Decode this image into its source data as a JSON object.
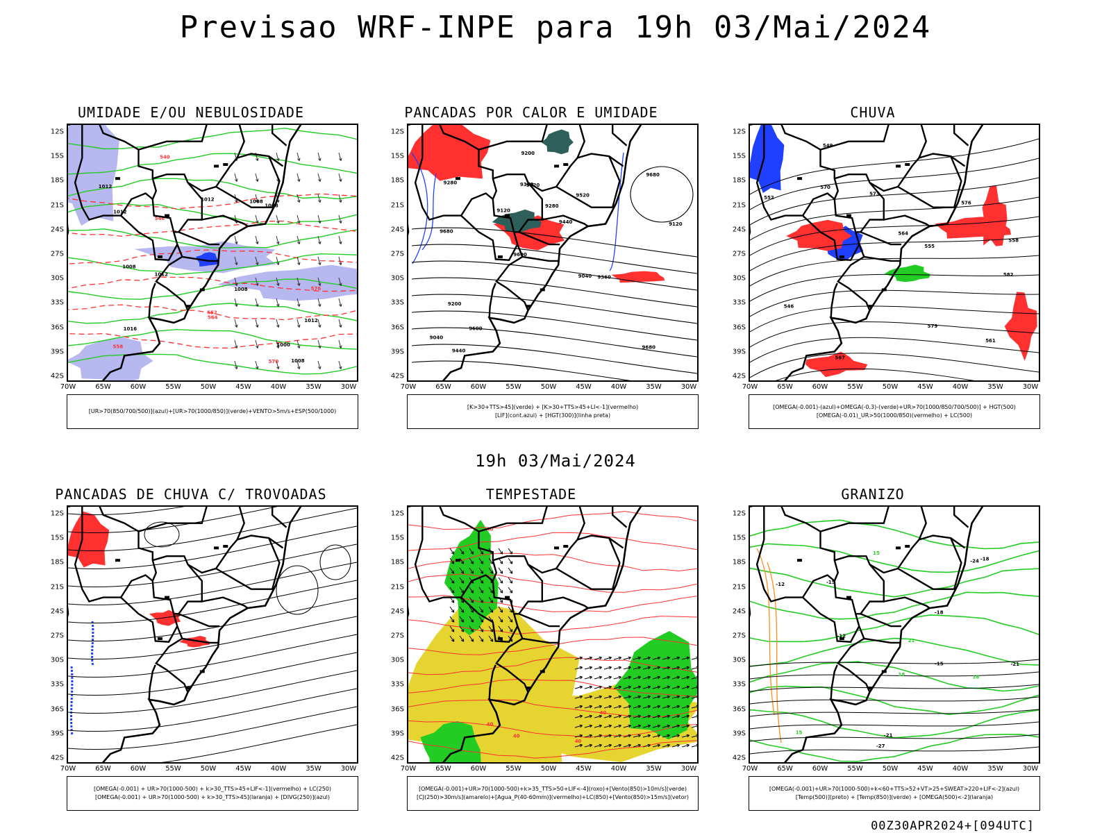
{
  "title": "Previsao WRF-INPE  para 19h 03/Mai/2024",
  "mid_title": "19h 03/Mai/2024",
  "footer": "00Z30APR2024+[094UTC]",
  "lat_labels": [
    "12S",
    "15S",
    "18S",
    "21S",
    "24S",
    "27S",
    "30S",
    "33S",
    "36S",
    "39S",
    "42S"
  ],
  "lon_labels": [
    "70W",
    "65W",
    "60W",
    "55W",
    "50W",
    "45W",
    "40W",
    "35W",
    "30W"
  ],
  "panels": [
    {
      "id": "umidade",
      "title": "UMIDADE E/OU NEBULOSIDADE",
      "legend": [
        "[UR>70(850/700/500)](azul)+[UR>70(1000/850)](verde)+VENTO>5m/s+ESP(500/1000)"
      ],
      "contour_labels": [
        "1008",
        "1008",
        "1008",
        "1012",
        "1012",
        "1012",
        "1016",
        "1012",
        "1008",
        "1012",
        "1008",
        "1000",
        "576",
        "570",
        "564",
        "558",
        "552",
        "546",
        "540"
      ]
    },
    {
      "id": "pancadas-calor",
      "title": "PANCADAS POR CALOR E UMIDADE",
      "legend": [
        "[K>30+TTS>45](verde) + [K>30+TTS>45+LI<-1](vermelho)",
        "[LIF](cont.azul) + [HGT(300)](linha preta)"
      ],
      "contour_labels": [
        "9680",
        "9680",
        "9680",
        "9600",
        "9520",
        "9440",
        "9360",
        "9280",
        "9200",
        "9120",
        "9040",
        "9600",
        "9520",
        "9440",
        "9360",
        "9280",
        "9200",
        "9120",
        "9040"
      ]
    },
    {
      "id": "chuva",
      "title": "CHUVA",
      "legend": [
        "[OMEGA(-0.001)-(azul)+OMEGA(-0.3)-(verde)+UR>70(1000/850/700/500)] + HGT(500)",
        "[OMEGA(-0.01)_UR>50(1000/850)(vermelho) + LC(500)"
      ],
      "contour_labels": [
        "582",
        "579",
        "576",
        "573",
        "570",
        "567",
        "564",
        "561",
        "558",
        "555",
        "552",
        "549",
        "546"
      ]
    },
    {
      "id": "pancadas-trovoadas",
      "title": "PANCADAS DE CHUVA C/ TROVOADAS",
      "legend": [
        "[OMEGA(-0.001) + UR>70(1000-500) + k>30_TTS>45+LIF<-1](vermelho) + LC(250)",
        "[OMEGA(-0.001) + UR>70(1000-500) + k>30_TTS>45](laranja) + [DIVG(250)](azul)"
      ],
      "contour_labels": []
    },
    {
      "id": "tempestade",
      "title": "TEMPESTADE",
      "legend": [
        "[OMEGA(-0.001)+UR>70(1000-500)+k>35_TTS>50+LIF<-4](roxo)+[Vento(850)>10m/s](verde)",
        "[CJ(250)>30m/s](amarelo)+[Agua_P(40-60mm)](vermelho)+LC(850)+[Vento(850)>15m/s](vetor)"
      ],
      "contour_labels": [
        "40",
        "40",
        "40",
        "40",
        "40"
      ]
    },
    {
      "id": "granizo",
      "title": "GRANIZO",
      "legend": [
        "[OMEGA(-0.001)+UR>70(1000-500)+k<60+TTS>52+VT>25+SWEAT>220+LIF<-2](azul)",
        "[Temp(500)](preto) + [Temp(850)](verde) + [OMEGA(500)<-2](laranja)"
      ],
      "contour_labels": [
        "-12",
        "-15",
        "-18",
        "-21",
        "-24",
        "-27",
        "-15",
        "-12",
        "-18",
        "-21",
        "15",
        "18",
        "21",
        "18",
        "15"
      ]
    }
  ],
  "colors": {
    "coast": "#000000",
    "blue_shade": "#b8b8f0",
    "blue": "#2040ff",
    "green": "#22cc22",
    "red": "#ff3030",
    "dark_teal": "#2f5f5a",
    "yellow": "#e6d430",
    "orange": "#ff8c1a"
  }
}
